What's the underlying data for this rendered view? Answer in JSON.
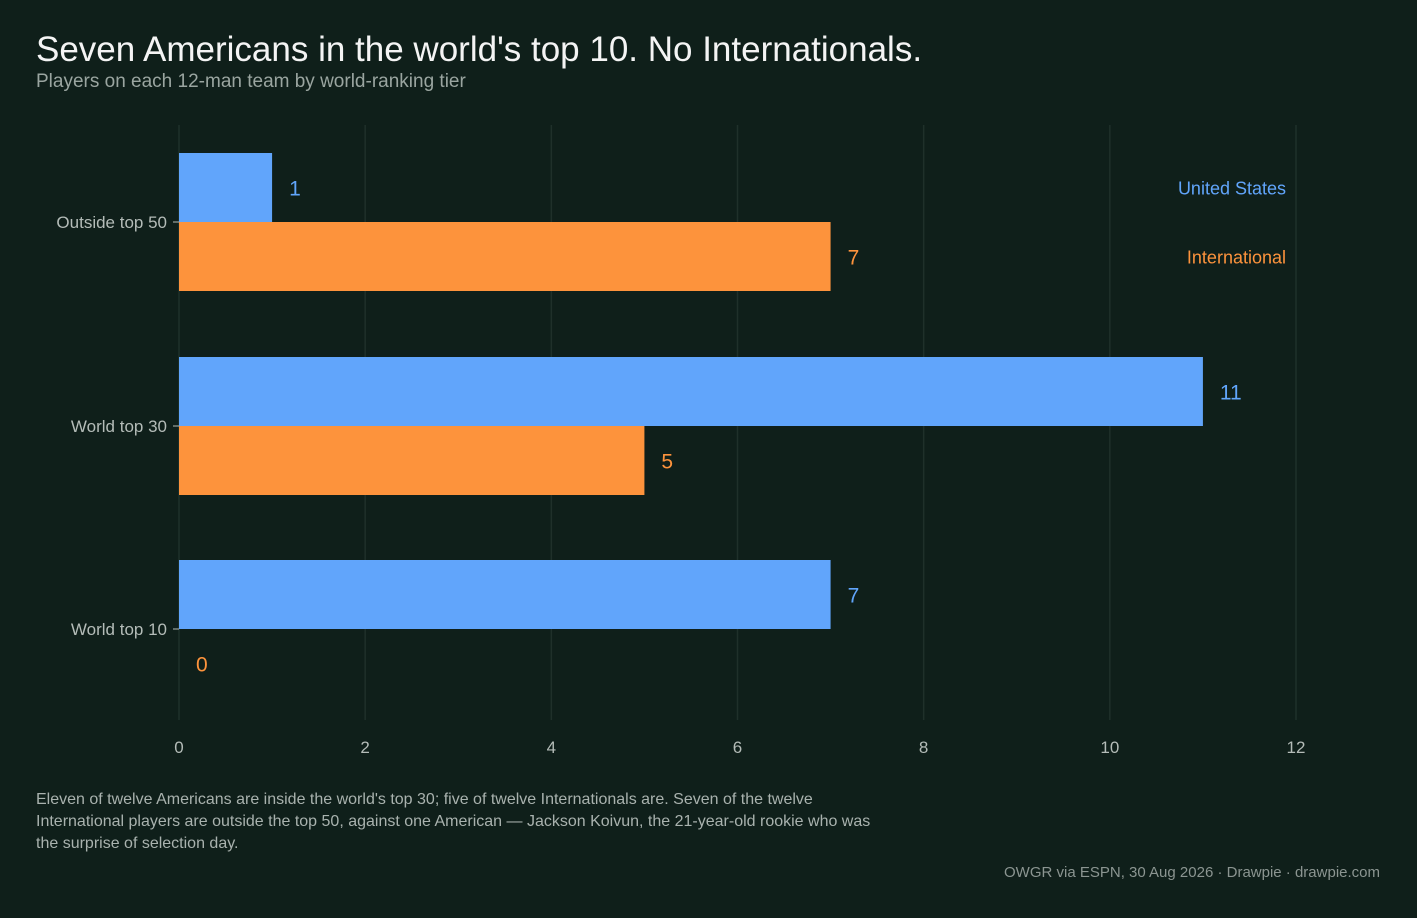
{
  "header": {
    "title": "Seven Americans in the world's top 10. No Internationals.",
    "subtitle": "Players on each 12-man team by world-ranking tier"
  },
  "chart_data": {
    "type": "bar",
    "orientation": "horizontal",
    "categories": [
      "Outside top 50",
      "World top 30",
      "World top 10"
    ],
    "series": [
      {
        "name": "United States",
        "values": [
          1,
          11,
          7
        ],
        "color": "#61a5fb"
      },
      {
        "name": "International",
        "values": [
          7,
          5,
          0
        ],
        "color": "#fd933c"
      }
    ],
    "xlim": [
      0,
      12
    ],
    "xticks": [
      0,
      2,
      4,
      6,
      8,
      10,
      12
    ],
    "grid": "vertical",
    "legend": "top-right"
  },
  "footer": {
    "note": "Eleven of twelve Americans are inside the world's top 30; five of twelve Internationals are. Seven of the twelve International players are outside the top 50, against one American — Jackson Koivun, the 21-year-old rookie who was the surprise of selection day.",
    "source": "OWGR via ESPN, 30 Aug 2026  ·  Drawpie · drawpie.com"
  },
  "colors": {
    "background": "#0f1f1a",
    "grid": "#1f302a",
    "axis_text": "#b4bcb8"
  }
}
